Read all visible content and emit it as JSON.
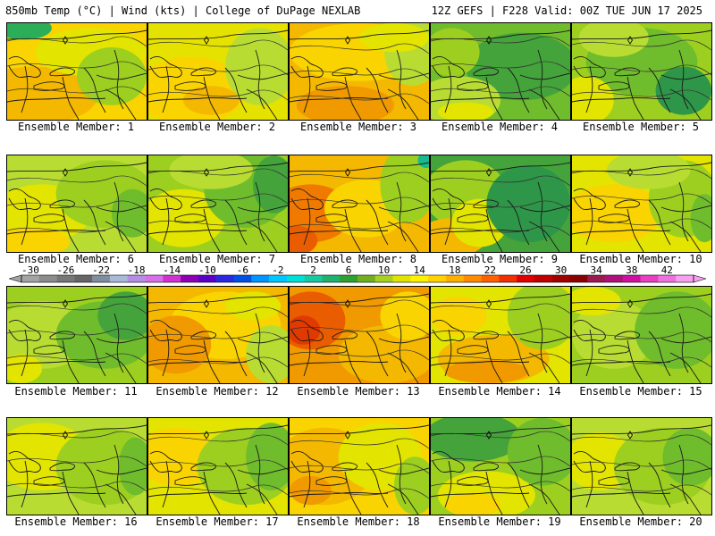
{
  "header": {
    "left": "850mb Temp (°C) | Wind (kts) | College of DuPage NEXLAB",
    "right": "12Z GEFS | F228 Valid: 00Z TUE JUN 17 2025"
  },
  "panels": [
    {
      "label": "Ensemble Member: 1",
      "base": "#f9d400",
      "blobs": [
        [
          "#f4b800",
          0.2,
          0.75,
          0.45,
          0.3
        ],
        [
          "#e3e400",
          0.6,
          0.3,
          0.4,
          0.25
        ],
        [
          "#9ccf1f",
          0.75,
          0.55,
          0.25,
          0.3
        ],
        [
          "#2cae59",
          0.12,
          0.05,
          0.2,
          0.12
        ]
      ]
    },
    {
      "label": "Ensemble Member: 2",
      "base": "#e6e200",
      "blobs": [
        [
          "#f9d400",
          0.3,
          0.7,
          0.4,
          0.35
        ],
        [
          "#b9dc33",
          0.8,
          0.45,
          0.25,
          0.4
        ],
        [
          "#f4b800",
          0.45,
          0.8,
          0.2,
          0.15
        ]
      ]
    },
    {
      "label": "Ensemble Member: 3",
      "base": "#f4b800",
      "blobs": [
        [
          "#f9d400",
          0.5,
          0.3,
          0.5,
          0.3
        ],
        [
          "#f09a00",
          0.4,
          0.85,
          0.35,
          0.2
        ],
        [
          "#b9dc33",
          0.88,
          0.3,
          0.2,
          0.35
        ],
        [
          "#e3e400",
          0.75,
          0.15,
          0.25,
          0.15
        ]
      ]
    },
    {
      "label": "Ensemble Member: 4",
      "base": "#6fbc2c",
      "blobs": [
        [
          "#44a33a",
          0.65,
          0.45,
          0.4,
          0.35
        ],
        [
          "#b9dc33",
          0.2,
          0.8,
          0.3,
          0.25
        ],
        [
          "#e3e400",
          0.25,
          0.92,
          0.2,
          0.1
        ],
        [
          "#9ccf1f",
          0.15,
          0.3,
          0.2,
          0.25
        ]
      ]
    },
    {
      "label": "Ensemble Member: 5",
      "base": "#9ccf1f",
      "blobs": [
        [
          "#6fbc2c",
          0.5,
          0.4,
          0.4,
          0.35
        ],
        [
          "#e3e400",
          0.1,
          0.8,
          0.2,
          0.25
        ],
        [
          "#2e9648",
          0.8,
          0.7,
          0.2,
          0.25
        ],
        [
          "#b9dc33",
          0.3,
          0.15,
          0.25,
          0.2
        ]
      ]
    },
    {
      "label": "Ensemble Member: 6",
      "base": "#b9dc33",
      "blobs": [
        [
          "#e3e400",
          0.25,
          0.6,
          0.35,
          0.3
        ],
        [
          "#f9d400",
          0.15,
          0.9,
          0.3,
          0.15
        ],
        [
          "#9ccf1f",
          0.7,
          0.4,
          0.35,
          0.35
        ],
        [
          "#6fbc2c",
          0.9,
          0.6,
          0.15,
          0.25
        ]
      ]
    },
    {
      "label": "Ensemble Member: 7",
      "base": "#9ccf1f",
      "blobs": [
        [
          "#e3e400",
          0.25,
          0.65,
          0.3,
          0.3
        ],
        [
          "#6fbc2c",
          0.7,
          0.35,
          0.3,
          0.4
        ],
        [
          "#44a33a",
          0.9,
          0.3,
          0.15,
          0.3
        ],
        [
          "#b9dc33",
          0.45,
          0.15,
          0.3,
          0.2
        ]
      ]
    },
    {
      "label": "Ensemble Member: 8",
      "base": "#f4b800",
      "blobs": [
        [
          "#f07a00",
          0.15,
          0.6,
          0.3,
          0.3
        ],
        [
          "#ea5c00",
          0.05,
          0.88,
          0.15,
          0.15
        ],
        [
          "#f9d400",
          0.55,
          0.55,
          0.3,
          0.3
        ],
        [
          "#9ccf1f",
          0.85,
          0.3,
          0.2,
          0.4
        ],
        [
          "#19b98d",
          0.98,
          0.05,
          0.06,
          0.08
        ]
      ]
    },
    {
      "label": "Ensemble Member: 9",
      "base": "#44a33a",
      "blobs": [
        [
          "#9ccf1f",
          0.25,
          0.4,
          0.3,
          0.35
        ],
        [
          "#f4b800",
          0.15,
          0.85,
          0.25,
          0.2
        ],
        [
          "#e3e400",
          0.35,
          0.7,
          0.2,
          0.25
        ],
        [
          "#2e9648",
          0.7,
          0.5,
          0.3,
          0.4
        ]
      ]
    },
    {
      "label": "Ensemble Member: 10",
      "base": "#e3e400",
      "blobs": [
        [
          "#f9d400",
          0.3,
          0.6,
          0.35,
          0.3
        ],
        [
          "#9ccf1f",
          0.8,
          0.45,
          0.25,
          0.4
        ],
        [
          "#6fbc2c",
          0.95,
          0.65,
          0.1,
          0.25
        ],
        [
          "#b9dc33",
          0.55,
          0.15,
          0.3,
          0.2
        ]
      ]
    },
    {
      "label": "Ensemble Member: 11",
      "base": "#9ccf1f",
      "blobs": [
        [
          "#b9dc33",
          0.25,
          0.5,
          0.35,
          0.35
        ],
        [
          "#6fbc2c",
          0.7,
          0.5,
          0.35,
          0.35
        ],
        [
          "#44a33a",
          0.85,
          0.3,
          0.2,
          0.25
        ],
        [
          "#e3e400",
          0.1,
          0.85,
          0.15,
          0.15
        ]
      ]
    },
    {
      "label": "Ensemble Member: 12",
      "base": "#f4b800",
      "blobs": [
        [
          "#f9d400",
          0.55,
          0.4,
          0.4,
          0.35
        ],
        [
          "#f09a00",
          0.2,
          0.6,
          0.25,
          0.3
        ],
        [
          "#b9dc33",
          0.88,
          0.7,
          0.18,
          0.3
        ],
        [
          "#e3e400",
          0.75,
          0.2,
          0.2,
          0.15
        ]
      ]
    },
    {
      "label": "Ensemble Member: 13",
      "base": "#f09a00",
      "blobs": [
        [
          "#ea5c00",
          0.15,
          0.35,
          0.25,
          0.3
        ],
        [
          "#e03a00",
          0.1,
          0.45,
          0.12,
          0.15
        ],
        [
          "#f4b800",
          0.7,
          0.7,
          0.35,
          0.3
        ],
        [
          "#f9d400",
          0.85,
          0.3,
          0.2,
          0.25
        ]
      ]
    },
    {
      "label": "Ensemble Member: 14",
      "base": "#e3e400",
      "blobs": [
        [
          "#f4b800",
          0.45,
          0.75,
          0.4,
          0.25
        ],
        [
          "#f09a00",
          0.4,
          0.88,
          0.3,
          0.12
        ],
        [
          "#9ccf1f",
          0.8,
          0.3,
          0.25,
          0.35
        ],
        [
          "#f9d400",
          0.2,
          0.3,
          0.2,
          0.2
        ]
      ]
    },
    {
      "label": "Ensemble Member: 15",
      "base": "#9ccf1f",
      "blobs": [
        [
          "#b9dc33",
          0.3,
          0.5,
          0.3,
          0.35
        ],
        [
          "#6fbc2c",
          0.75,
          0.45,
          0.3,
          0.4
        ],
        [
          "#e3e400",
          0.15,
          0.15,
          0.2,
          0.15
        ]
      ]
    },
    {
      "label": "Ensemble Member: 16",
      "base": "#b9dc33",
      "blobs": [
        [
          "#e3e400",
          0.25,
          0.4,
          0.35,
          0.35
        ],
        [
          "#9ccf1f",
          0.7,
          0.5,
          0.35,
          0.4
        ],
        [
          "#6fbc2c",
          0.92,
          0.5,
          0.12,
          0.3
        ]
      ]
    },
    {
      "label": "Ensemble Member: 17",
      "base": "#e3e400",
      "blobs": [
        [
          "#f9d400",
          0.2,
          0.4,
          0.3,
          0.3
        ],
        [
          "#9ccf1f",
          0.7,
          0.5,
          0.35,
          0.4
        ],
        [
          "#6fbc2c",
          0.88,
          0.4,
          0.18,
          0.35
        ]
      ]
    },
    {
      "label": "Ensemble Member: 18",
      "base": "#f9d400",
      "blobs": [
        [
          "#f4b800",
          0.25,
          0.5,
          0.35,
          0.4
        ],
        [
          "#f09a00",
          0.15,
          0.75,
          0.15,
          0.15
        ],
        [
          "#e3e400",
          0.65,
          0.4,
          0.3,
          0.35
        ],
        [
          "#9ccf1f",
          0.9,
          0.7,
          0.15,
          0.3
        ]
      ]
    },
    {
      "label": "Ensemble Member: 19",
      "base": "#9ccf1f",
      "blobs": [
        [
          "#44a33a",
          0.3,
          0.2,
          0.35,
          0.25
        ],
        [
          "#e3e400",
          0.4,
          0.8,
          0.35,
          0.25
        ],
        [
          "#f9d400",
          0.3,
          0.9,
          0.2,
          0.12
        ],
        [
          "#6fbc2c",
          0.8,
          0.35,
          0.25,
          0.35
        ]
      ]
    },
    {
      "label": "Ensemble Member: 20",
      "base": "#b9dc33",
      "blobs": [
        [
          "#e3e400",
          0.2,
          0.45,
          0.25,
          0.3
        ],
        [
          "#9ccf1f",
          0.65,
          0.5,
          0.35,
          0.4
        ],
        [
          "#6fbc2c",
          0.85,
          0.4,
          0.2,
          0.3
        ]
      ]
    }
  ],
  "colorbar": {
    "colors": [
      "#a4a4a4",
      "#8c8c8c",
      "#777777",
      "#666666",
      "#7f8fa0",
      "#a9b9d8",
      "#b48ee5",
      "#d96fe8",
      "#cf32d0",
      "#8f00b5",
      "#5a00c8",
      "#2a28e0",
      "#0050e6",
      "#0096ff",
      "#00c8ff",
      "#00e0d8",
      "#18c8a0",
      "#20b070",
      "#30a030",
      "#70b020",
      "#a8d020",
      "#e0e400",
      "#fff200",
      "#ffd200",
      "#ffaf00",
      "#ff8c00",
      "#ff6000",
      "#f03000",
      "#e00000",
      "#c00000",
      "#a00000",
      "#8b0000",
      "#9b1b50",
      "#b0107a",
      "#d010a0",
      "#e840c0",
      "#f070e0",
      "#f8a0f0"
    ],
    "labels": [
      "-30",
      "-26",
      "-22",
      "-18",
      "-14",
      "-10",
      "-6",
      "-2",
      "2",
      "6",
      "10",
      "14",
      "18",
      "22",
      "26",
      "30",
      "34",
      "38",
      "42"
    ]
  }
}
